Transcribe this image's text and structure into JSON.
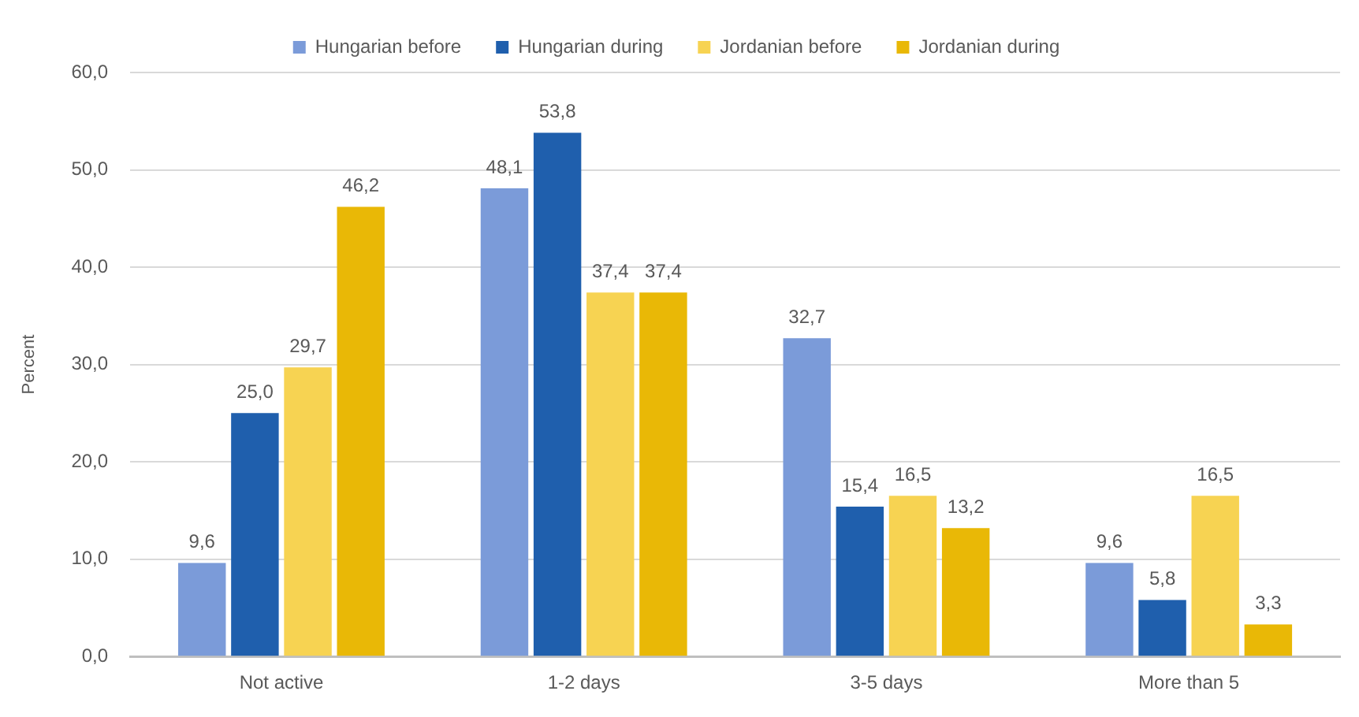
{
  "chart_data": {
    "type": "bar",
    "ylabel": "Percent",
    "categories": [
      "Not active",
      "1-2 days",
      "3-5 days",
      "More than 5"
    ],
    "series": [
      {
        "name": "Hungarian before",
        "color": "#7b9bd9",
        "values": [
          9.6,
          48.1,
          32.7,
          9.6
        ],
        "value_labels": [
          "9,6",
          "48,1",
          "32,7",
          "9,6"
        ]
      },
      {
        "name": "Hungarian during",
        "color": "#1f5fad",
        "values": [
          25.0,
          53.8,
          15.4,
          5.8
        ],
        "value_labels": [
          "25,0",
          "53,8",
          "15,4",
          "5,8"
        ]
      },
      {
        "name": "Jordanian before",
        "color": "#f7d352",
        "values": [
          29.7,
          37.4,
          16.5,
          16.5
        ],
        "value_labels": [
          "29,7",
          "37,4",
          "16,5",
          "16,5"
        ]
      },
      {
        "name": "Jordanian during",
        "color": "#e9b806",
        "values": [
          46.2,
          37.4,
          13.2,
          3.3
        ],
        "value_labels": [
          "46,2",
          "37,4",
          "13,2",
          "3,3"
        ]
      }
    ],
    "ylim": [
      0,
      60
    ],
    "yticks": [
      {
        "value": 0,
        "label": "0,0"
      },
      {
        "value": 10,
        "label": "10,0"
      },
      {
        "value": 20,
        "label": "20,0"
      },
      {
        "value": 30,
        "label": "30,0"
      },
      {
        "value": 40,
        "label": "40,0"
      },
      {
        "value": 50,
        "label": "50,0"
      },
      {
        "value": 60,
        "label": "60,0"
      }
    ],
    "grid": "y",
    "legend": "top"
  }
}
